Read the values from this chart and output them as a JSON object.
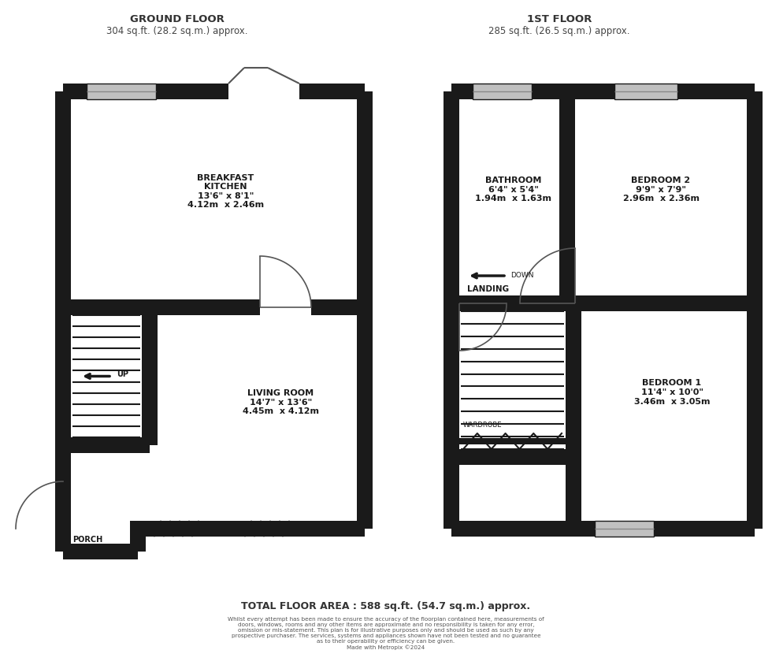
{
  "bg_color": "#ffffff",
  "wall_color": "#1a1a1a",
  "title_ground": "GROUND FLOOR",
  "subtitle_ground": "304 sq.ft. (28.2 sq.m.) approx.",
  "title_first": "1ST FLOOR",
  "subtitle_first": "285 sq.ft. (26.5 sq.m.) approx.",
  "total_area": "TOTAL FLOOR AREA : 588 sq.ft. (54.7 sq.m.) approx.",
  "disclaimer": "Whilst every attempt has been made to ensure the accuracy of the floorplan contained here, measurements of\ndoors, windows, rooms and any other items are approximate and no responsibility is taken for any error,\nomission or mis-statement. This plan is for illustrative purposes only and should be used as such by any\nprospective purchaser. The services, systems and appliances shown have not been tested and no guarantee\nas to their operability or efficiency can be given.\nMade with Metropix ©2024",
  "label_breakfast": "BREAKFAST\nKITCHEN\n13'6\" x 8'1\"\n4.12m  x 2.46m",
  "label_living": "LIVING ROOM\n14'7\" x 13'6\"\n4.45m  x 4.12m",
  "label_porch": "PORCH",
  "label_up": "UP",
  "label_bathroom": "BATHROOM\n6'4\" x 5'4\"\n1.94m  x 1.63m",
  "label_bedroom2": "BEDROOM 2\n9'9\" x 7'9\"\n2.96m  x 2.36m",
  "label_bedroom1": "BEDROOM 1\n11'4\" x 10'0\"\n3.46m  x 3.05m",
  "label_landing": "LANDING",
  "label_down": "DOWN",
  "label_wardrobe": "WARDROBE"
}
